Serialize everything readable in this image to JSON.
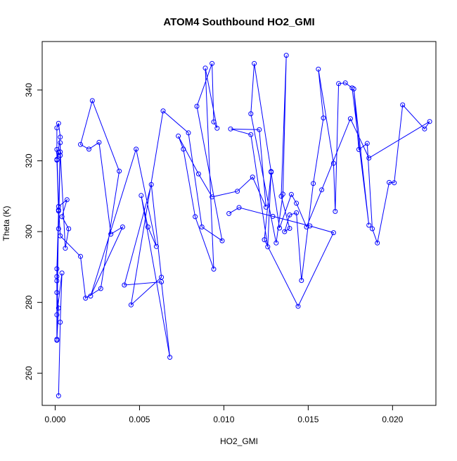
{
  "chart_data": {
    "type": "line",
    "title": "ATOM4 Southbound HO2_GMI",
    "xlabel": "HO2_GMI",
    "ylabel": "Theta (K)",
    "xlim": [
      -0.00077,
      0.02257
    ],
    "ylim": [
      250.9,
      353.7
    ],
    "x_ticks": [
      0.0,
      0.005,
      0.01,
      0.015,
      0.02
    ],
    "x_tick_labels": [
      "0.000",
      "0.005",
      "0.010",
      "0.015",
      "0.020"
    ],
    "y_ticks": [
      260,
      280,
      300,
      320,
      340
    ],
    "y_tick_labels": [
      "260",
      "280",
      "300",
      "320",
      "340"
    ],
    "grid": false,
    "legend": "none",
    "series": [
      {
        "color": "#0000ff",
        "marker": "open-circle",
        "x": [
          0.0002,
          0.0003,
          0.0004,
          0.0001,
          0.0002,
          0.0001,
          0.0001,
          0.0002,
          0.0003,
          0.0001,
          0.0002,
          0.0001,
          0.0002,
          0.0001,
          0.0001,
          0.0002,
          0.0001,
          0.0003,
          0.0003,
          0.0001,
          0.0001,
          0.0001,
          0.0002,
          0.0002,
          0.0003,
          0.0006,
          0.0008,
          0.0004,
          0.0007,
          0.0002,
          0.0003,
          0.0015,
          0.0018,
          0.0027,
          0.0038,
          0.0022,
          0.0015,
          0.002,
          0.0026,
          0.0033,
          0.004,
          0.0021,
          0.0048,
          0.006,
          0.0055,
          0.0051,
          0.0068,
          0.0063,
          0.0041,
          0.0057,
          0.0063,
          0.0045,
          0.0064,
          0.0079,
          0.0087,
          0.0099,
          0.0084,
          0.0093,
          0.0094,
          0.0096,
          0.0089,
          0.0094,
          0.0083,
          0.0076,
          0.0073,
          0.0085,
          0.0093,
          0.0108,
          0.0117,
          0.0125,
          0.0121,
          0.0104,
          0.0116,
          0.0126,
          0.0128,
          0.0118,
          0.0116,
          0.0131,
          0.0135,
          0.0137,
          0.0134,
          0.0139,
          0.0136,
          0.0139,
          0.0143,
          0.0146,
          0.0153,
          0.0159,
          0.0156,
          0.0165,
          0.0166,
          0.0168,
          0.0172,
          0.0176,
          0.0186,
          0.0177,
          0.018,
          0.0185,
          0.0188,
          0.0191,
          0.0198,
          0.0201,
          0.0206,
          0.0219,
          0.0222,
          0.0186,
          0.0175,
          0.0158,
          0.0149,
          0.0143,
          0.014,
          0.0133,
          0.0128,
          0.0124,
          0.0144,
          0.0165,
          0.0151,
          0.0129,
          0.0109,
          0.0103
        ],
        "y": [
          253.6,
          274.4,
          288.3,
          276.5,
          305.8,
          320.4,
          329.3,
          330.6,
          326.7,
          320.2,
          322.3,
          323.2,
          306.1,
          286.1,
          269.3,
          278.4,
          282.8,
          325.1,
          321.5,
          289.5,
          287.3,
          269.6,
          306.1,
          300.8,
          322.5,
          295.3,
          300.8,
          304.2,
          309.0,
          307.1,
          298.8,
          293.0,
          281.2,
          283.9,
          317.1,
          337.0,
          324.6,
          323.3,
          325.2,
          299.3,
          301.3,
          281.8,
          323.3,
          295.8,
          301.3,
          310.2,
          264.5,
          285.8,
          284.9,
          313.3,
          287.1,
          279.3,
          334.1,
          327.9,
          301.3,
          297.4,
          335.4,
          347.5,
          331.0,
          329.2,
          346.2,
          289.4,
          304.2,
          323.3,
          327.0,
          316.3,
          309.8,
          311.4,
          315.4,
          306.9,
          328.8,
          329.0,
          327.4,
          295.7,
          317.0,
          347.5,
          333.3,
          296.8,
          310.6,
          349.8,
          310.0,
          300.9,
          300.0,
          304.7,
          305.3,
          286.2,
          313.6,
          332.1,
          345.9,
          319.3,
          305.7,
          341.8,
          342.0,
          340.6,
          301.8,
          340.3,
          323.2,
          324.9,
          300.8,
          296.8,
          313.9,
          313.8,
          335.8,
          329.0,
          331.1,
          320.8,
          331.9,
          311.8,
          301.3,
          308.0,
          310.5,
          301.0,
          316.8,
          297.7,
          278.9,
          299.7,
          301.6,
          304.3,
          306.8,
          305.1
        ]
      }
    ]
  }
}
